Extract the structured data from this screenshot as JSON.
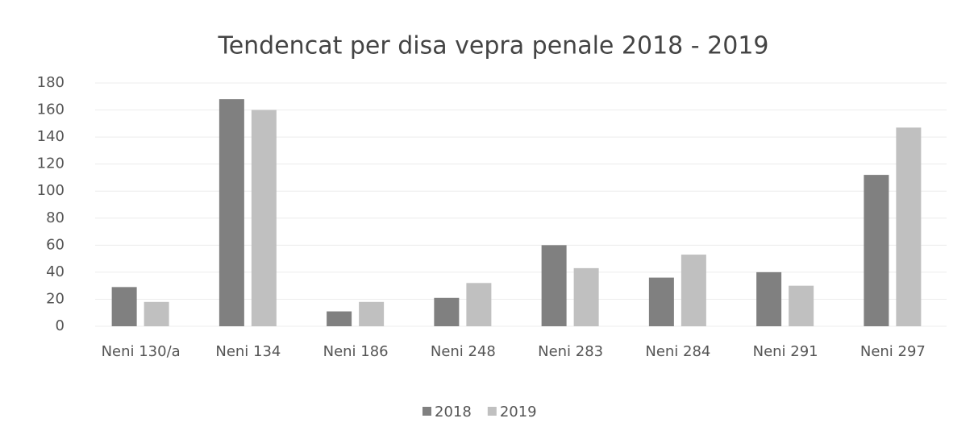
{
  "chart_data": {
    "type": "bar",
    "title": "Tendencat per disa vepra penale 2018 - 2019",
    "categories": [
      "Neni 130/a",
      "Neni 134",
      "Neni 186",
      "Neni 248",
      "Neni 283",
      "Neni 284",
      "Neni 291",
      "Neni 297"
    ],
    "series": [
      {
        "name": "2018",
        "color": "#808080",
        "values": [
          29,
          168,
          11,
          21,
          60,
          36,
          40,
          112
        ]
      },
      {
        "name": "2019",
        "color": "#c0c0c0",
        "values": [
          18,
          160,
          18,
          32,
          43,
          53,
          30,
          147
        ]
      }
    ],
    "ylim": [
      0,
      180
    ],
    "yticks": [
      0,
      20,
      40,
      60,
      80,
      100,
      120,
      140,
      160,
      180
    ],
    "grid": true,
    "legend": "bottom"
  }
}
